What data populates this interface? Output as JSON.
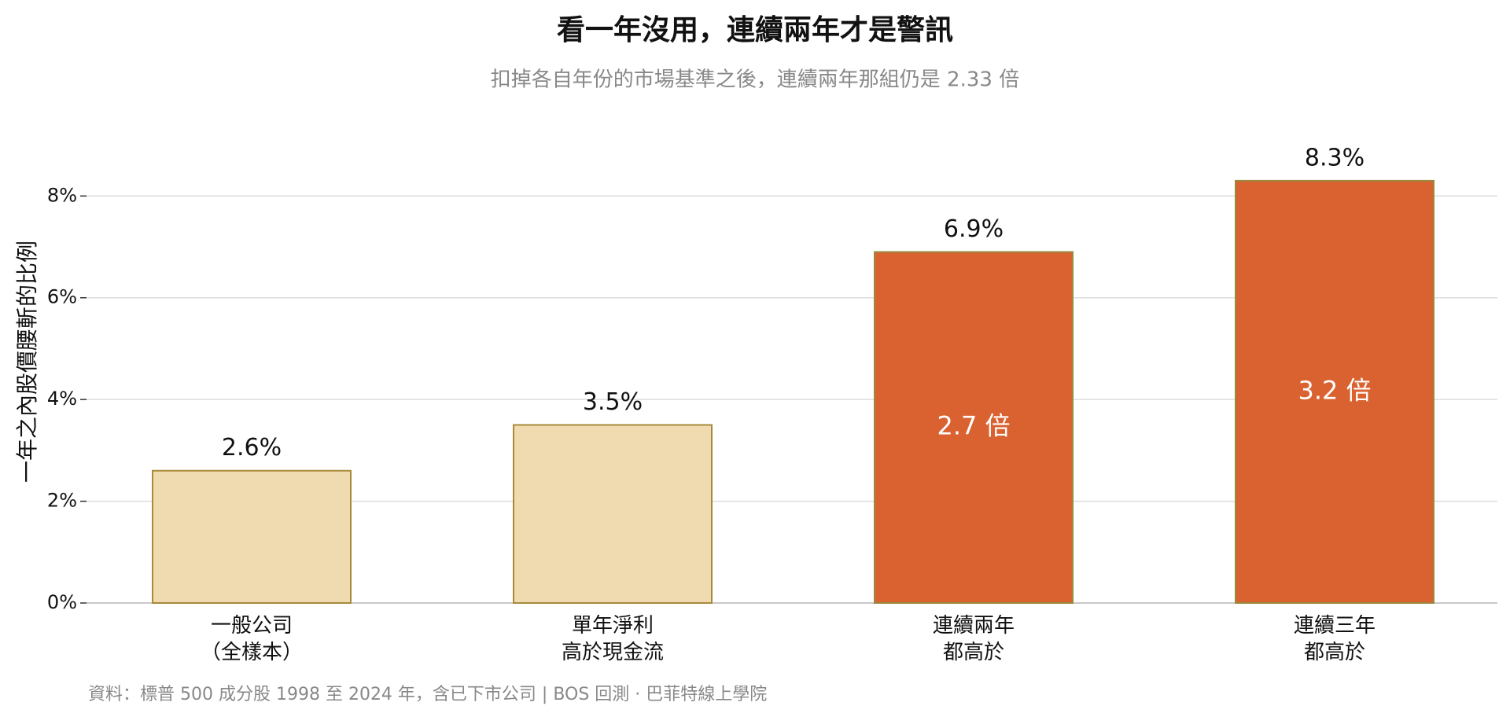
{
  "chart_data": {
    "type": "bar",
    "title": "看一年沒用，連續兩年才是警訊",
    "subtitle": "扣掉各自年份的市場基準之後，連續兩年那組仍是 2.33 倍",
    "y_label": "一年之內股價腰斬的比例",
    "source": "資料：標普 500 成分股 1998 至 2024 年，含已下市公司 | BOS 回測 ·  巴菲特線上學院",
    "categories": [
      "一般公司\n（全樣本）",
      "單年淨利\n高於現金流",
      "連續兩年\n都高於",
      "連續三年\n都高於"
    ],
    "values": [
      2.6,
      3.5,
      6.9,
      8.3
    ],
    "value_labels": [
      "2.6%",
      "3.5%",
      "6.9%",
      "8.3%"
    ],
    "inner_labels": [
      null,
      null,
      "2.7 倍",
      "3.2 倍"
    ],
    "colors": [
      "#f0dbb0",
      "#f0dbb0",
      "#d96230",
      "#d96230"
    ],
    "edge_colors": [
      "#a88a3a",
      "#a88a3a",
      "#9a8a40",
      "#9a8a40"
    ],
    "ylim": [
      0,
      8.7
    ],
    "yticks": [
      {
        "value": 0,
        "label": "0%"
      },
      {
        "value": 2,
        "label": "2%"
      },
      {
        "value": 4,
        "label": "4%"
      },
      {
        "value": 6,
        "label": "6%"
      },
      {
        "value": 8,
        "label": "8%"
      }
    ],
    "grid": true
  }
}
